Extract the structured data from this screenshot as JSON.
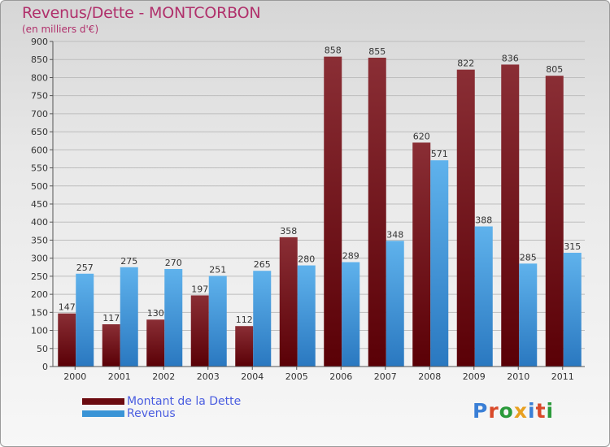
{
  "header": {
    "title": "Revenus/Dette - MONTCORBON",
    "subtitle": "(en milliers d'€)"
  },
  "colors": {
    "dette": "#6b0a0f",
    "revenus": "#3a94d6",
    "title": "#b0306b",
    "legend_text": "#4a5de0"
  },
  "legend": {
    "dette_label": "Montant de la Dette",
    "revenus_label": "Revenus"
  },
  "logo": {
    "text": "Proxiti"
  },
  "chart_data": {
    "type": "bar",
    "title": "Revenus/Dette - MONTCORBON",
    "subtitle": "(en milliers d'€)",
    "categories": [
      "2000",
      "2001",
      "2002",
      "2003",
      "2004",
      "2005",
      "2006",
      "2007",
      "2008",
      "2009",
      "2010",
      "2011"
    ],
    "series": [
      {
        "name": "Montant de la Dette",
        "values": [
          147,
          117,
          130,
          197,
          112,
          358,
          858,
          855,
          620,
          822,
          836,
          805
        ]
      },
      {
        "name": "Revenus",
        "values": [
          257,
          275,
          270,
          251,
          265,
          280,
          289,
          348,
          571,
          388,
          285,
          315
        ]
      }
    ],
    "ylim": [
      0,
      900
    ],
    "yticks": [
      0,
      50,
      100,
      150,
      200,
      250,
      300,
      350,
      400,
      450,
      500,
      550,
      600,
      650,
      700,
      750,
      800,
      850,
      900
    ],
    "grid": true,
    "legend_position": "bottom-left"
  }
}
